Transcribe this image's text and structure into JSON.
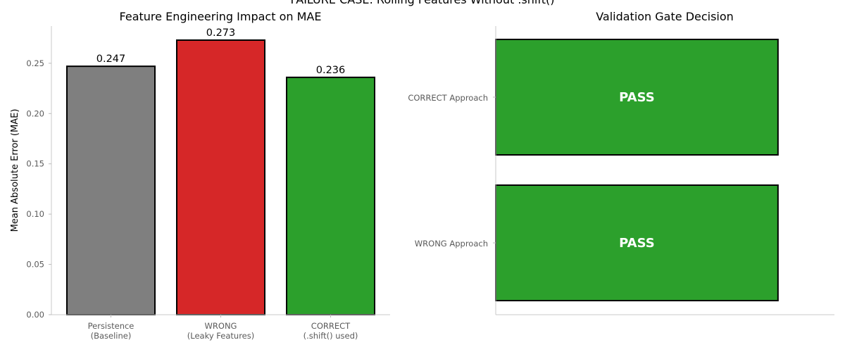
{
  "suptitle": "FAILURE CASE: Rolling Features Without .shift()",
  "chart_data": [
    {
      "type": "bar",
      "title": "Feature Engineering Impact on MAE",
      "ylabel": "Mean Absolute Error (MAE)",
      "xlabel": "",
      "categories": [
        [
          "Persistence",
          "(Baseline)"
        ],
        [
          "WRONG",
          "(Leaky Features)"
        ],
        [
          "CORRECT",
          "(.shift() used)"
        ]
      ],
      "values": [
        0.247,
        0.273,
        0.236
      ],
      "value_labels": [
        "0.247",
        "0.273",
        "0.236"
      ],
      "colors": [
        "#7f7f7f",
        "#d62728",
        "#2ca02c"
      ],
      "ylim": [
        0,
        0.287
      ],
      "yticks": [
        0.0,
        0.05,
        0.1,
        0.15,
        0.2,
        0.25
      ],
      "ytick_labels": [
        "0.00",
        "0.05",
        "0.10",
        "0.15",
        "0.20",
        "0.25"
      ],
      "grid": false
    },
    {
      "type": "bar",
      "orientation": "horizontal",
      "title": "Validation Gate Decision",
      "categories": [
        "CORRECT Approach",
        "WRONG Approach"
      ],
      "values": [
        1,
        1
      ],
      "bar_labels": [
        "PASS",
        "PASS"
      ],
      "colors": [
        "#2ca02c",
        "#2ca02c"
      ],
      "xlim": [
        0,
        1.2
      ],
      "grid": false
    }
  ]
}
